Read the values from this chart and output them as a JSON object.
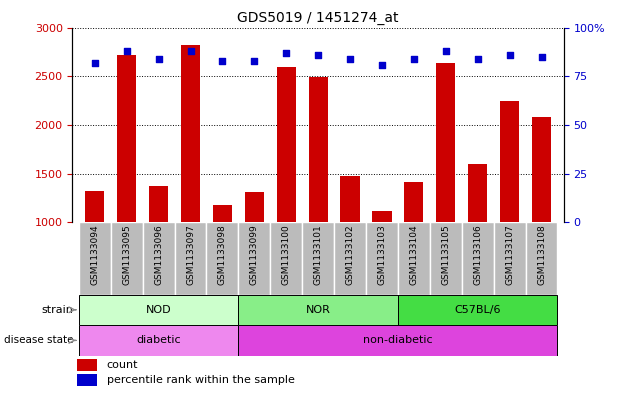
{
  "title": "GDS5019 / 1451274_at",
  "samples": [
    "GSM1133094",
    "GSM1133095",
    "GSM1133096",
    "GSM1133097",
    "GSM1133098",
    "GSM1133099",
    "GSM1133100",
    "GSM1133101",
    "GSM1133102",
    "GSM1133103",
    "GSM1133104",
    "GSM1133105",
    "GSM1133106",
    "GSM1133107",
    "GSM1133108"
  ],
  "counts": [
    1320,
    2720,
    1370,
    2820,
    1180,
    1310,
    2590,
    2490,
    1470,
    1110,
    1410,
    2640,
    1600,
    2240,
    2080
  ],
  "percentiles": [
    82,
    88,
    84,
    88,
    83,
    83,
    87,
    86,
    84,
    81,
    84,
    88,
    84,
    86,
    85
  ],
  "ylim_left": [
    1000,
    3000
  ],
  "ylim_right": [
    0,
    100
  ],
  "yticks_left": [
    1000,
    1500,
    2000,
    2500,
    3000
  ],
  "yticks_right": [
    0,
    25,
    50,
    75,
    100
  ],
  "bar_color": "#cc0000",
  "dot_color": "#0000cc",
  "bg_color": "#ffffff",
  "xtick_bg_color": "#bbbbbb",
  "xtick_border_color": "#ffffff",
  "strain_groups": [
    {
      "label": "NOD",
      "start": 0,
      "end": 4,
      "color": "#ccffcc"
    },
    {
      "label": "NOR",
      "start": 5,
      "end": 9,
      "color": "#88ee88"
    },
    {
      "label": "C57BL/6",
      "start": 10,
      "end": 14,
      "color": "#44dd44"
    }
  ],
  "disease_groups": [
    {
      "label": "diabetic",
      "start": 0,
      "end": 4,
      "color": "#ee88ee"
    },
    {
      "label": "non-diabetic",
      "start": 5,
      "end": 14,
      "color": "#dd44dd"
    }
  ],
  "strain_label": "strain",
  "disease_label": "disease state",
  "legend_count_label": "count",
  "legend_percentile_label": "percentile rank within the sample",
  "tick_color_left": "#cc0000",
  "tick_color_right": "#0000cc"
}
